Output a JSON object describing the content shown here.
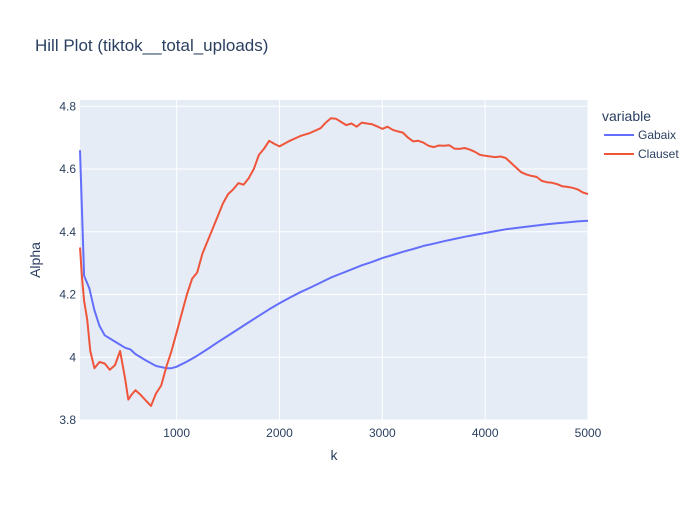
{
  "chart_data": {
    "type": "line",
    "title": "Hill Plot (tiktok__total_uploads)",
    "xlabel": "k",
    "ylabel": "Alpha",
    "xlim": [
      60,
      5000
    ],
    "ylim": [
      3.8,
      4.82
    ],
    "xticks": [
      1000,
      2000,
      3000,
      4000,
      5000
    ],
    "xtick_labels": [
      "1000",
      "2000",
      "3000",
      "4000",
      "5000"
    ],
    "yticks": [
      3.8,
      4,
      4.2,
      4.4,
      4.6,
      4.8
    ],
    "ytick_labels": [
      "3.8",
      "4",
      "4.2",
      "4.4",
      "4.6",
      "4.8"
    ],
    "grid": true,
    "legend_title": "variable",
    "legend_position": "right",
    "series": [
      {
        "name": "Gabaix",
        "color": "#636efa",
        "x": [
          60,
          100,
          150,
          200,
          250,
          300,
          400,
          500,
          550,
          600,
          700,
          800,
          900,
          950,
          1000,
          1100,
          1200,
          1300,
          1400,
          1500,
          1600,
          1700,
          1800,
          1900,
          2000,
          2100,
          2200,
          2300,
          2400,
          2500,
          2600,
          2700,
          2800,
          2900,
          3000,
          3100,
          3200,
          3300,
          3400,
          3500,
          3600,
          3700,
          3800,
          3900,
          4000,
          4100,
          4200,
          4300,
          4400,
          4500,
          4600,
          4700,
          4800,
          4900,
          5000
        ],
        "y": [
          4.66,
          4.26,
          4.22,
          4.15,
          4.1,
          4.07,
          4.05,
          4.03,
          4.025,
          4.01,
          3.99,
          3.972,
          3.965,
          3.965,
          3.97,
          3.986,
          4.005,
          4.026,
          4.048,
          4.069,
          4.09,
          4.111,
          4.132,
          4.153,
          4.172,
          4.19,
          4.207,
          4.222,
          4.238,
          4.254,
          4.267,
          4.28,
          4.293,
          4.304,
          4.316,
          4.326,
          4.336,
          4.345,
          4.355,
          4.362,
          4.37,
          4.377,
          4.384,
          4.39,
          4.396,
          4.402,
          4.408,
          4.412,
          4.416,
          4.42,
          4.424,
          4.427,
          4.43,
          4.433,
          4.435
        ]
      },
      {
        "name": "Clauset",
        "color": "#ef553b",
        "x": [
          60,
          80,
          100,
          130,
          160,
          200,
          250,
          300,
          350,
          400,
          450,
          500,
          530,
          560,
          600,
          650,
          700,
          750,
          800,
          850,
          900,
          950,
          1000,
          1050,
          1100,
          1150,
          1200,
          1250,
          1300,
          1350,
          1400,
          1450,
          1500,
          1550,
          1600,
          1650,
          1700,
          1750,
          1800,
          1850,
          1900,
          1950,
          2000,
          2100,
          2200,
          2300,
          2400,
          2450,
          2500,
          2550,
          2600,
          2650,
          2700,
          2750,
          2800,
          2850,
          2900,
          2950,
          3000,
          3050,
          3100,
          3150,
          3200,
          3250,
          3300,
          3350,
          3400,
          3450,
          3500,
          3550,
          3600,
          3650,
          3700,
          3750,
          3800,
          3850,
          3900,
          3950,
          4000,
          4050,
          4100,
          4150,
          4200,
          4250,
          4300,
          4350,
          4400,
          4450,
          4500,
          4550,
          4600,
          4650,
          4700,
          4750,
          4800,
          4850,
          4900,
          4950,
          5000
        ],
        "y": [
          4.35,
          4.25,
          4.18,
          4.12,
          4.02,
          3.965,
          3.985,
          3.98,
          3.96,
          3.975,
          4.02,
          3.93,
          3.865,
          3.88,
          3.895,
          3.88,
          3.862,
          3.845,
          3.885,
          3.91,
          3.97,
          4.02,
          4.08,
          4.14,
          4.2,
          4.25,
          4.27,
          4.33,
          4.37,
          4.41,
          4.45,
          4.49,
          4.52,
          4.535,
          4.555,
          4.55,
          4.57,
          4.6,
          4.645,
          4.665,
          4.69,
          4.68,
          4.672,
          4.69,
          4.705,
          4.715,
          4.73,
          4.748,
          4.762,
          4.76,
          4.75,
          4.74,
          4.745,
          4.735,
          4.748,
          4.745,
          4.743,
          4.736,
          4.728,
          4.735,
          4.725,
          4.72,
          4.716,
          4.7,
          4.688,
          4.69,
          4.684,
          4.674,
          4.67,
          4.675,
          4.674,
          4.676,
          4.665,
          4.664,
          4.667,
          4.662,
          4.655,
          4.645,
          4.642,
          4.64,
          4.638,
          4.64,
          4.635,
          4.62,
          4.605,
          4.59,
          4.583,
          4.578,
          4.575,
          4.562,
          4.558,
          4.556,
          4.552,
          4.545,
          4.543,
          4.54,
          4.535,
          4.525,
          4.52
        ]
      }
    ]
  }
}
